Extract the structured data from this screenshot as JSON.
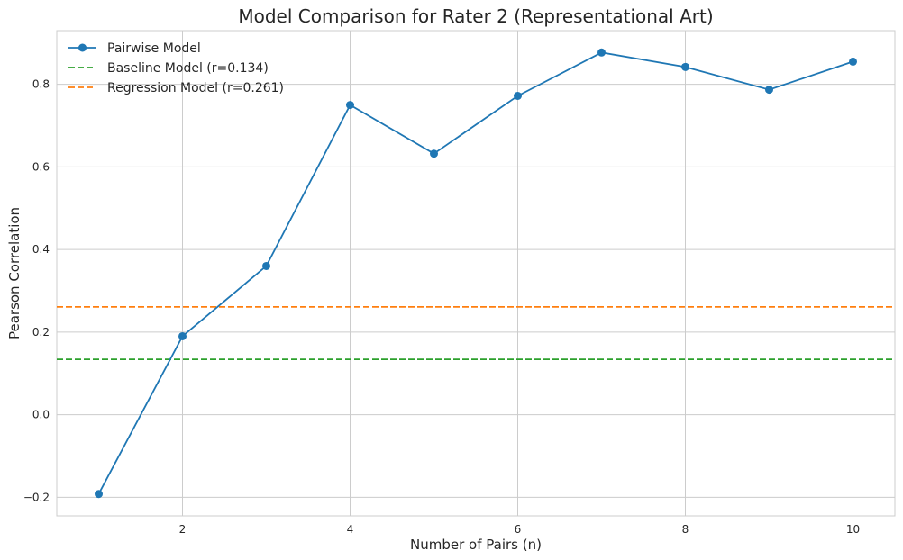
{
  "chart_data": {
    "type": "line",
    "title": "Model Comparison for Rater 2 (Representational Art)",
    "xlabel": "Number of Pairs (n)",
    "ylabel": "Pearson Correlation",
    "xlim": [
      0.5,
      10.5
    ],
    "ylim": [
      -0.245,
      0.93
    ],
    "xticks": [
      2,
      4,
      6,
      8,
      10
    ],
    "xtick_labels": [
      "2",
      "4",
      "6",
      "8",
      "10"
    ],
    "yticks": [
      -0.2,
      0.0,
      0.2,
      0.4,
      0.6,
      0.8
    ],
    "ytick_labels": [
      "−0.2",
      "0.0",
      "0.2",
      "0.4",
      "0.6",
      "0.8"
    ],
    "grid": true,
    "legend_position": "top-left",
    "series": [
      {
        "name": "Pairwise Model",
        "kind": "line-marker",
        "color": "#1f77b4",
        "x": [
          1,
          2,
          3,
          4,
          5,
          6,
          7,
          8,
          9,
          10
        ],
        "y": [
          -0.192,
          0.19,
          0.36,
          0.75,
          0.632,
          0.772,
          0.877,
          0.842,
          0.787,
          0.855
        ]
      }
    ],
    "reference_lines": [
      {
        "name": "Baseline Model (r=0.134)",
        "y": 0.134,
        "color": "#2ca02c",
        "style": "dashed"
      },
      {
        "name": "Regression Model (r=0.261)",
        "y": 0.261,
        "color": "#ff7f0e",
        "style": "dashed"
      }
    ]
  }
}
